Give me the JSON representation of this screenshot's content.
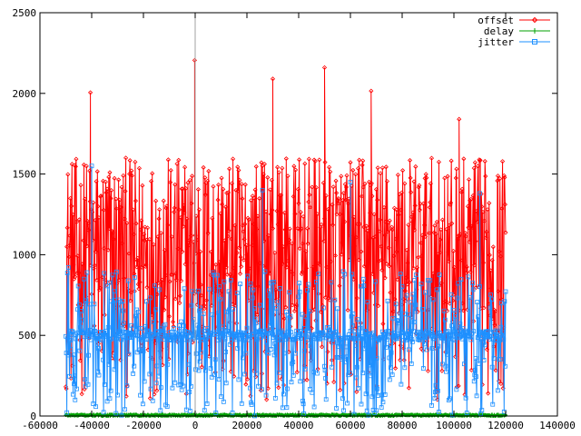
{
  "chart_data": {
    "type": "line",
    "title": "",
    "xlabel": "",
    "ylabel": "",
    "xlim": [
      -60000,
      140000
    ],
    "ylim": [
      0,
      2500
    ],
    "x_ticks": [
      -60000,
      -40000,
      -20000,
      0,
      20000,
      40000,
      60000,
      80000,
      100000,
      120000,
      140000
    ],
    "y_ticks": [
      0,
      500,
      1000,
      1500,
      2000,
      2500
    ],
    "x_tick_labels": [
      "-60000",
      "-40000",
      "-20000",
      "0",
      "20000",
      "40000",
      "60000",
      "80000",
      "100000",
      "120000",
      "140000"
    ],
    "y_tick_labels": [
      "0",
      "500",
      "1000",
      "1500",
      "2000",
      "2500"
    ],
    "grid": false,
    "legend_position": "top-right",
    "zero_axis": "x=0 vertical line",
    "sample_interval": 200,
    "series": [
      {
        "name": "offset",
        "color": "#ff0000",
        "marker": "diamond",
        "x_range": [
          -50000,
          120000
        ],
        "typical_range": [
          100,
          1600
        ],
        "peaks": [
          {
            "x": -40500,
            "y": 2005
          },
          {
            "x": -200,
            "y": 2205
          },
          {
            "x": 30000,
            "y": 2090
          },
          {
            "x": 50000,
            "y": 2160
          },
          {
            "x": 68000,
            "y": 2015
          },
          {
            "x": 102000,
            "y": 1840
          }
        ]
      },
      {
        "name": "delay",
        "color": "#00a000",
        "marker": "plus",
        "x_range": [
          -50000,
          120000
        ],
        "typical_range": [
          0,
          10
        ]
      },
      {
        "name": "jitter",
        "color": "#1e90ff",
        "marker": "square",
        "x_range": [
          -50000,
          120000
        ],
        "typical_range": [
          0,
          900
        ],
        "peaks": [
          {
            "x": -49000,
            "y": 920
          },
          {
            "x": -40000,
            "y": 1550
          },
          {
            "x": 26000,
            "y": 1400
          },
          {
            "x": 60000,
            "y": 1450
          },
          {
            "x": 110000,
            "y": 1380
          }
        ]
      }
    ]
  }
}
